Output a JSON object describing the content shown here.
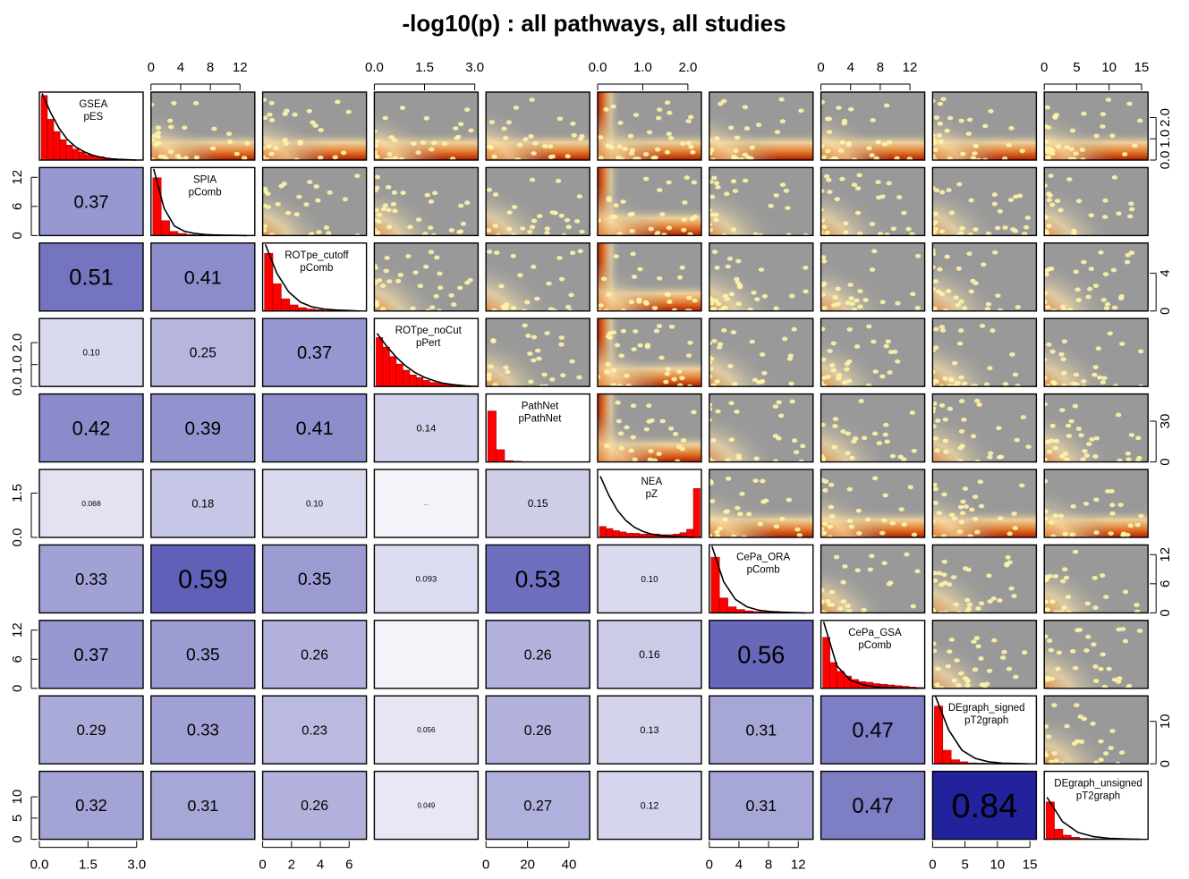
{
  "chart_data": {
    "type": "pairs",
    "title": "-log10(p) : all pathways, all studies",
    "variables": [
      {
        "method": "GSEA",
        "stat": "pES",
        "range": [
          0,
          3.2
        ],
        "hist": [
          0.95,
          0.6,
          0.42,
          0.3,
          0.22,
          0.16,
          0.12,
          0.08,
          0.06,
          0.05,
          0.03,
          0.02,
          0.015,
          0.01,
          0.008,
          0.005
        ],
        "density": [
          0.98,
          0.7,
          0.47,
          0.3,
          0.19,
          0.12,
          0.07,
          0.04,
          0.02,
          0.01,
          0.005,
          0.0
        ]
      },
      {
        "method": "SPIA",
        "stat": "pComb",
        "range": [
          0,
          14
        ],
        "hist": [
          0.85,
          0.22,
          0.06,
          0.03,
          0.015,
          0.01,
          0.008,
          0.005,
          0.004,
          0.003,
          0.002,
          0.002
        ],
        "density": [
          0.98,
          0.4,
          0.14,
          0.06,
          0.03,
          0.015,
          0.008,
          0.004,
          0.002,
          0.0
        ]
      },
      {
        "method": "ROTpe_cutoff",
        "stat": "pComb",
        "range": [
          0,
          7.2
        ],
        "hist": [
          0.85,
          0.4,
          0.18,
          0.09,
          0.05,
          0.03,
          0.02,
          0.01,
          0.008,
          0.005
        ],
        "density": [
          0.98,
          0.55,
          0.28,
          0.13,
          0.06,
          0.03,
          0.015,
          0.008,
          0.0
        ]
      },
      {
        "method": "ROTpe_noCut",
        "stat": "pPert",
        "range": [
          0,
          3.1
        ],
        "hist": [
          0.72,
          0.58,
          0.44,
          0.33,
          0.24,
          0.17,
          0.13,
          0.09,
          0.06,
          0.05,
          0.035,
          0.025,
          0.02,
          0.015,
          0.01
        ],
        "density": [
          0.78,
          0.6,
          0.44,
          0.31,
          0.21,
          0.14,
          0.09,
          0.05,
          0.03,
          0.015,
          0.0
        ]
      },
      {
        "method": "PathNet",
        "stat": "pPathNet",
        "range": [
          0,
          50
        ],
        "hist": [
          0.75,
          0.18,
          0.02,
          0.01,
          0.005
        ],
        "density": []
      },
      {
        "method": "NEA",
        "stat": "pZ",
        "range": [
          0,
          2.3
        ],
        "hist": [
          0.16,
          0.13,
          0.1,
          0.08,
          0.06,
          0.06,
          0.05,
          0.05,
          0.05,
          0.04,
          0.04,
          0.05,
          0.07,
          0.12,
          0.72
        ],
        "density": [
          0.9,
          0.62,
          0.4,
          0.25,
          0.15,
          0.09,
          0.05,
          0.03,
          0.02,
          0.01,
          0.005,
          0.0
        ]
      },
      {
        "method": "CePa_ORA",
        "stat": "pComb",
        "range": [
          0,
          14
        ],
        "hist": [
          0.82,
          0.22,
          0.09,
          0.05,
          0.03,
          0.02,
          0.015,
          0.01,
          0.008,
          0.005,
          0.004,
          0.003
        ],
        "density": [
          0.98,
          0.46,
          0.2,
          0.09,
          0.04,
          0.02,
          0.01,
          0.005,
          0.0
        ]
      },
      {
        "method": "CePa_GSA",
        "stat": "pComb",
        "range": [
          0,
          14
        ],
        "hist": [
          0.75,
          0.38,
          0.25,
          0.18,
          0.13,
          0.1,
          0.09,
          0.07,
          0.06,
          0.05,
          0.04,
          0.03,
          0.02,
          0.015
        ],
        "density": [
          0.98,
          0.33,
          0.12,
          0.05,
          0.02,
          0.01,
          0.005,
          0.0
        ]
      },
      {
        "method": "DEgraph_signed",
        "stat": "pT2graph",
        "range": [
          0,
          16
        ],
        "hist": [
          0.85,
          0.2,
          0.06,
          0.03,
          0.015,
          0.01,
          0.008,
          0.005,
          0.004,
          0.003
        ],
        "density": [
          1.0,
          0.5,
          0.2,
          0.08,
          0.03,
          0.01,
          0.005,
          0.0
        ]
      },
      {
        "method": "DEgraph_unsigned",
        "stat": "pT2graph",
        "range": [
          0,
          16
        ],
        "hist": [
          0.55,
          0.15,
          0.06,
          0.03,
          0.015,
          0.01,
          0.008,
          0.005,
          0.004,
          0.003
        ],
        "density": [
          0.62,
          0.26,
          0.1,
          0.04,
          0.015,
          0.005,
          0.0
        ]
      }
    ],
    "correlations": [
      {
        "row": 1,
        "col": 0,
        "label": "0.37",
        "value": 0.37
      },
      {
        "row": 2,
        "col": 0,
        "label": "0.51",
        "value": 0.51
      },
      {
        "row": 2,
        "col": 1,
        "label": "0.41",
        "value": 0.41
      },
      {
        "row": 3,
        "col": 0,
        "label": "0.10",
        "value": 0.1
      },
      {
        "row": 3,
        "col": 1,
        "label": "0.25",
        "value": 0.25
      },
      {
        "row": 3,
        "col": 2,
        "label": "0.37",
        "value": 0.37
      },
      {
        "row": 4,
        "col": 0,
        "label": "0.42",
        "value": 0.42
      },
      {
        "row": 4,
        "col": 1,
        "label": "0.39",
        "value": 0.39
      },
      {
        "row": 4,
        "col": 2,
        "label": "0.41",
        "value": 0.41
      },
      {
        "row": 4,
        "col": 3,
        "label": "0.14",
        "value": 0.14
      },
      {
        "row": 5,
        "col": 0,
        "label": "0.068",
        "value": 0.068
      },
      {
        "row": 5,
        "col": 1,
        "label": "0.18",
        "value": 0.18
      },
      {
        "row": 5,
        "col": 2,
        "label": "0.10",
        "value": 0.1
      },
      {
        "row": 5,
        "col": 3,
        "label": "...",
        "value": 0.0
      },
      {
        "row": 5,
        "col": 4,
        "label": "0.15",
        "value": 0.15
      },
      {
        "row": 6,
        "col": 0,
        "label": "0.33",
        "value": 0.33
      },
      {
        "row": 6,
        "col": 1,
        "label": "0.59",
        "value": 0.59
      },
      {
        "row": 6,
        "col": 2,
        "label": "0.35",
        "value": 0.35
      },
      {
        "row": 6,
        "col": 3,
        "label": "0.093",
        "value": 0.093
      },
      {
        "row": 6,
        "col": 4,
        "label": "0.53",
        "value": 0.53
      },
      {
        "row": 6,
        "col": 5,
        "label": "0.10",
        "value": 0.1
      },
      {
        "row": 7,
        "col": 0,
        "label": "0.37",
        "value": 0.37
      },
      {
        "row": 7,
        "col": 1,
        "label": "0.35",
        "value": 0.35
      },
      {
        "row": 7,
        "col": 2,
        "label": "0.26",
        "value": 0.26
      },
      {
        "row": 7,
        "col": 3,
        "label": "",
        "value": 0.0
      },
      {
        "row": 7,
        "col": 4,
        "label": "0.26",
        "value": 0.26
      },
      {
        "row": 7,
        "col": 5,
        "label": "0.16",
        "value": 0.16
      },
      {
        "row": 7,
        "col": 6,
        "label": "0.56",
        "value": 0.56
      },
      {
        "row": 8,
        "col": 0,
        "label": "0.29",
        "value": 0.29
      },
      {
        "row": 8,
        "col": 1,
        "label": "0.33",
        "value": 0.33
      },
      {
        "row": 8,
        "col": 2,
        "label": "0.23",
        "value": 0.23
      },
      {
        "row": 8,
        "col": 3,
        "label": "0.056",
        "value": 0.056
      },
      {
        "row": 8,
        "col": 4,
        "label": "0.26",
        "value": 0.26
      },
      {
        "row": 8,
        "col": 5,
        "label": "0.13",
        "value": 0.13
      },
      {
        "row": 8,
        "col": 6,
        "label": "0.31",
        "value": 0.31
      },
      {
        "row": 8,
        "col": 7,
        "label": "0.47",
        "value": 0.47
      },
      {
        "row": 9,
        "col": 0,
        "label": "0.32",
        "value": 0.32
      },
      {
        "row": 9,
        "col": 1,
        "label": "0.31",
        "value": 0.31
      },
      {
        "row": 9,
        "col": 2,
        "label": "0.26",
        "value": 0.26
      },
      {
        "row": 9,
        "col": 3,
        "label": "0.049",
        "value": 0.049
      },
      {
        "row": 9,
        "col": 4,
        "label": "0.27",
        "value": 0.27
      },
      {
        "row": 9,
        "col": 5,
        "label": "0.12",
        "value": 0.12
      },
      {
        "row": 9,
        "col": 6,
        "label": "0.31",
        "value": 0.31
      },
      {
        "row": 9,
        "col": 7,
        "label": "0.47",
        "value": 0.47
      },
      {
        "row": 9,
        "col": 8,
        "label": "0.84",
        "value": 0.84
      }
    ],
    "axes": {
      "top": [
        {
          "col": 1,
          "ticks": [
            "0",
            "4",
            "8",
            "12"
          ],
          "values": [
            0,
            4,
            8,
            12
          ]
        },
        {
          "col": 3,
          "ticks": [
            "0.0",
            "1.5",
            "3.0"
          ],
          "values": [
            0,
            1.5,
            3.0
          ]
        },
        {
          "col": 5,
          "ticks": [
            "0.0",
            "1.0",
            "2.0"
          ],
          "values": [
            0,
            1.0,
            2.0
          ]
        },
        {
          "col": 7,
          "ticks": [
            "0",
            "4",
            "8",
            "12"
          ],
          "values": [
            0,
            4,
            8,
            12
          ]
        },
        {
          "col": 9,
          "ticks": [
            "0",
            "5",
            "10",
            "15"
          ],
          "values": [
            0,
            5,
            10,
            15
          ]
        }
      ],
      "bottom": [
        {
          "col": 0,
          "ticks": [
            "0.0",
            "1.5",
            "3.0"
          ],
          "values": [
            0,
            1.5,
            3.0
          ]
        },
        {
          "col": 2,
          "ticks": [
            "0",
            "2",
            "4",
            "6"
          ],
          "values": [
            0,
            2,
            4,
            6
          ]
        },
        {
          "col": 4,
          "ticks": [
            "0",
            "20",
            "40"
          ],
          "values": [
            0,
            20,
            40
          ]
        },
        {
          "col": 6,
          "ticks": [
            "0",
            "4",
            "8",
            "12"
          ],
          "values": [
            0,
            4,
            8,
            12
          ]
        },
        {
          "col": 8,
          "ticks": [
            "0",
            "5",
            "10",
            "15"
          ],
          "values": [
            0,
            5,
            10,
            15
          ]
        }
      ],
      "left": [
        {
          "row": 1,
          "ticks": [
            "0",
            "6",
            "12"
          ],
          "values": [
            0,
            6,
            12
          ]
        },
        {
          "row": 3,
          "ticks": [
            "0.0",
            "1.0",
            "2.0"
          ],
          "values": [
            0,
            1.0,
            2.0
          ]
        },
        {
          "row": 5,
          "ticks": [
            "0.0",
            "1.5"
          ],
          "values": [
            0,
            1.5
          ]
        },
        {
          "row": 7,
          "ticks": [
            "0",
            "6",
            "12"
          ],
          "values": [
            0,
            6,
            12
          ]
        },
        {
          "row": 9,
          "ticks": [
            "0",
            "5",
            "10"
          ],
          "values": [
            0,
            5,
            10
          ]
        }
      ],
      "right": [
        {
          "row": 0,
          "ticks": [
            "0.0",
            "1.0",
            "2.0"
          ],
          "values": [
            0,
            1.0,
            2.0
          ]
        },
        {
          "row": 2,
          "ticks": [
            "0",
            "4"
          ],
          "values": [
            0,
            4
          ]
        },
        {
          "row": 4,
          "ticks": [
            "0",
            "30"
          ],
          "values": [
            0,
            30
          ]
        },
        {
          "row": 6,
          "ticks": [
            "0",
            "6",
            "12"
          ],
          "values": [
            0,
            6,
            12
          ]
        },
        {
          "row": 8,
          "ticks": [
            "0",
            "10"
          ],
          "values": [
            0,
            10
          ]
        }
      ]
    },
    "colors": {
      "hist_fill": "#ff0000",
      "density_line": "#000000",
      "scatter_background": "#999999",
      "scatter_dense": "#b22000",
      "scatter_points": "#fff4a8",
      "corr_low": "#f3f3fa",
      "corr_high": "#22229c"
    }
  }
}
